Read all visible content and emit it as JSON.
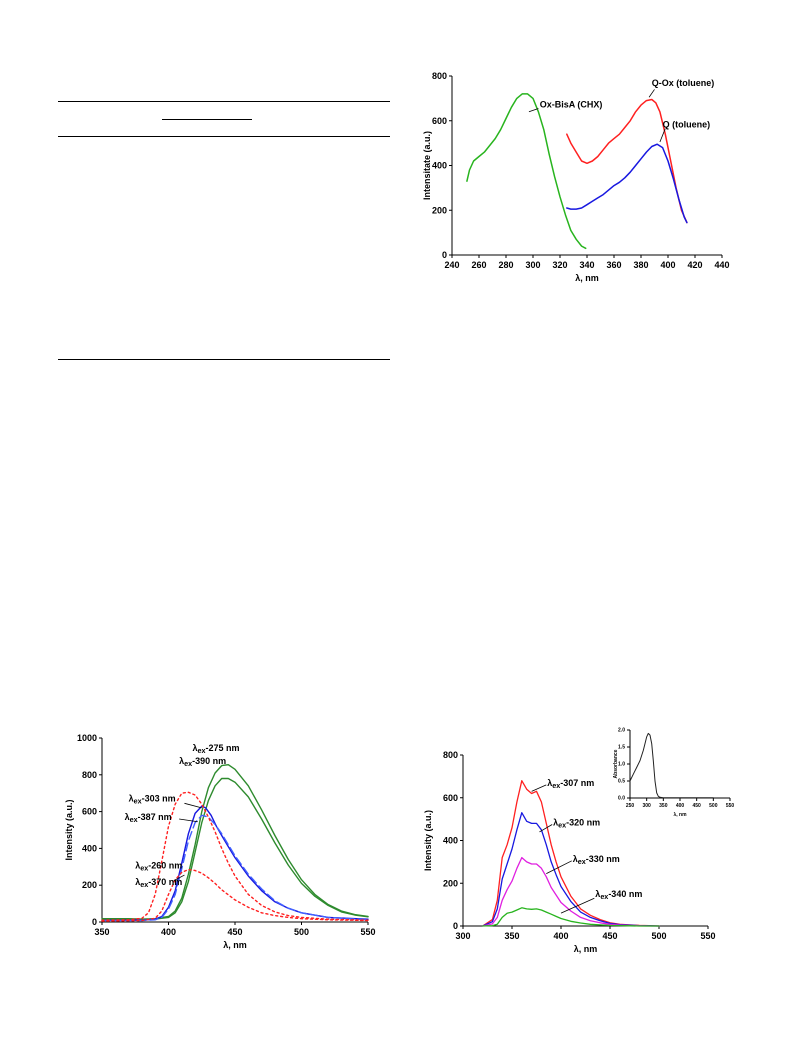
{
  "colors": {
    "green": "#28b41e",
    "red": "#ff2020",
    "blue": "#1818e0",
    "magenta": "#e020e0",
    "dkgreen": "#2e8b2e",
    "dotred": "#ff2020",
    "dashblue": "#4060ff"
  },
  "chart_data": [
    {
      "type": "line",
      "xlabel": "λ, nm",
      "ylabel": "Intensitate (a.u.)",
      "xlim": [
        240,
        440
      ],
      "ylim": [
        0,
        800
      ],
      "xticks": [
        240,
        260,
        280,
        300,
        320,
        340,
        360,
        380,
        400,
        420,
        440
      ],
      "yticks": [
        0,
        200,
        400,
        600,
        800
      ],
      "series": [
        {
          "name": "Ox-BisA (CHX)",
          "color": "#28b41e",
          "x": [
            251,
            253,
            256,
            260,
            264,
            268,
            272,
            276,
            280,
            284,
            288,
            292,
            296,
            300,
            304,
            308,
            312,
            316,
            320,
            324,
            328,
            332,
            336,
            339
          ],
          "y": [
            330,
            380,
            420,
            440,
            460,
            490,
            520,
            560,
            610,
            660,
            700,
            720,
            720,
            700,
            640,
            560,
            450,
            350,
            260,
            180,
            110,
            70,
            40,
            30
          ]
        },
        {
          "name": "Q-Ox (toluene)",
          "color": "#ff2020",
          "x": [
            325,
            328,
            332,
            336,
            340,
            344,
            348,
            352,
            356,
            360,
            364,
            368,
            372,
            376,
            380,
            384,
            388,
            391,
            394,
            398,
            402,
            406,
            410,
            414
          ],
          "y": [
            540,
            500,
            460,
            420,
            410,
            420,
            440,
            470,
            500,
            520,
            540,
            570,
            600,
            640,
            670,
            690,
            695,
            680,
            640,
            540,
            420,
            300,
            200,
            145
          ]
        },
        {
          "name": "Q (toluene)",
          "color": "#1818e0",
          "x": [
            325,
            328,
            332,
            336,
            340,
            344,
            348,
            352,
            356,
            360,
            364,
            368,
            372,
            376,
            380,
            384,
            388,
            392,
            396,
            400,
            404,
            408,
            412,
            414
          ],
          "y": [
            210,
            205,
            205,
            210,
            225,
            240,
            255,
            270,
            290,
            310,
            325,
            345,
            370,
            400,
            430,
            460,
            485,
            495,
            480,
            420,
            340,
            250,
            170,
            145
          ]
        }
      ],
      "annotations": [
        "Ox-BisA (CHX)",
        "Q-Ox (toluene)",
        "Q (toluene)"
      ]
    },
    {
      "type": "line",
      "xlabel": "λ, nm",
      "ylabel": "Intensity (a.u.)",
      "xlim": [
        350,
        550
      ],
      "ylim": [
        0,
        1000
      ],
      "xticks": [
        350,
        400,
        450,
        500,
        550
      ],
      "yticks": [
        0,
        200,
        400,
        600,
        800,
        1000
      ],
      "series": [
        {
          "name": "λex-275 nm",
          "color": "#2e8b2e",
          "dash": "",
          "x": [
            350,
            370,
            380,
            390,
            400,
            405,
            410,
            415,
            420,
            425,
            430,
            435,
            440,
            445,
            450,
            460,
            470,
            480,
            490,
            500,
            510,
            520,
            530,
            540,
            550
          ],
          "y": [
            18,
            18,
            16,
            18,
            30,
            60,
            130,
            260,
            420,
            600,
            730,
            810,
            850,
            855,
            830,
            740,
            610,
            470,
            340,
            230,
            150,
            95,
            60,
            40,
            30
          ]
        },
        {
          "name": "λex-390 nm",
          "color": "#2e8b2e",
          "dash": "",
          "x": [
            350,
            370,
            380,
            390,
            400,
            405,
            410,
            415,
            420,
            425,
            430,
            435,
            440,
            445,
            450,
            460,
            470,
            480,
            490,
            500,
            510,
            520,
            530,
            540,
            550
          ],
          "y": [
            15,
            15,
            14,
            16,
            25,
            50,
            110,
            220,
            380,
            540,
            660,
            740,
            780,
            780,
            760,
            680,
            560,
            430,
            310,
            210,
            140,
            90,
            55,
            38,
            28
          ]
        },
        {
          "name": "λex-303 nm",
          "color": "#1818e0",
          "dash": "",
          "x": [
            350,
            380,
            390,
            395,
            400,
            405,
            410,
            415,
            420,
            425,
            428,
            432,
            436,
            440,
            445,
            450,
            460,
            470,
            480,
            490,
            500,
            520,
            550
          ],
          "y": [
            10,
            10,
            15,
            30,
            80,
            170,
            320,
            480,
            590,
            630,
            620,
            580,
            520,
            470,
            410,
            350,
            250,
            170,
            110,
            75,
            50,
            25,
            15
          ]
        },
        {
          "name": "λex-387 nm",
          "color": "#4060ff",
          "dash": "8,4",
          "x": [
            350,
            380,
            390,
            395,
            400,
            405,
            410,
            415,
            420,
            425,
            430,
            435,
            440,
            445,
            450,
            460,
            470,
            480,
            490,
            500,
            520,
            550
          ],
          "y": [
            8,
            8,
            12,
            25,
            70,
            150,
            290,
            440,
            540,
            580,
            570,
            530,
            480,
            420,
            360,
            260,
            180,
            115,
            75,
            50,
            25,
            12
          ]
        },
        {
          "name": "λex-260 nm",
          "color": "#ff2020",
          "dash": "2,3",
          "x": [
            350,
            370,
            380,
            385,
            390,
            395,
            400,
            405,
            410,
            415,
            420,
            425,
            430,
            435,
            440,
            445,
            450,
            460,
            470,
            480,
            490,
            500,
            520,
            550
          ],
          "y": [
            10,
            12,
            20,
            50,
            150,
            330,
            520,
            640,
            700,
            705,
            690,
            640,
            570,
            490,
            400,
            320,
            250,
            150,
            90,
            55,
            35,
            25,
            15,
            10
          ]
        },
        {
          "name": "λex-370 nm",
          "color": "#ff2020",
          "dash": "2,3",
          "x": [
            350,
            380,
            390,
            395,
            400,
            405,
            410,
            415,
            420,
            425,
            430,
            435,
            440,
            450,
            460,
            470,
            480,
            490,
            500,
            520,
            550
          ],
          "y": [
            5,
            8,
            20,
            60,
            150,
            230,
            270,
            285,
            280,
            265,
            240,
            210,
            175,
            120,
            80,
            50,
            35,
            25,
            18,
            12,
            8
          ]
        }
      ],
      "annotations": [
        "λex-275 nm",
        "λex-390 nm",
        "λex-303 nm",
        "λex-387 nm",
        "λex-260 nm",
        "λex-370 nm"
      ]
    },
    {
      "type": "line",
      "xlabel": "λ, nm",
      "ylabel": "Intensity (a.u.)",
      "xlim": [
        300,
        550
      ],
      "ylim": [
        0,
        800
      ],
      "xticks": [
        300,
        350,
        400,
        450,
        500,
        550
      ],
      "yticks": [
        0,
        200,
        400,
        600,
        800
      ],
      "series": [
        {
          "name": "λex-307 nm",
          "color": "#ff2020",
          "x": [
            320,
            330,
            335,
            340,
            345,
            350,
            355,
            360,
            365,
            370,
            375,
            380,
            385,
            390,
            395,
            400,
            410,
            420,
            430,
            440,
            450,
            460,
            470,
            480,
            490,
            500
          ],
          "y": [
            0,
            30,
            120,
            320,
            380,
            460,
            580,
            680,
            640,
            620,
            630,
            580,
            480,
            380,
            300,
            230,
            140,
            80,
            50,
            30,
            15,
            8,
            5,
            3,
            2,
            0
          ]
        },
        {
          "name": "λex-320 nm",
          "color": "#1818e0",
          "x": [
            320,
            330,
            335,
            340,
            345,
            350,
            355,
            360,
            365,
            370,
            375,
            380,
            385,
            390,
            395,
            400,
            410,
            420,
            430,
            440,
            450,
            460,
            470,
            480,
            490,
            500
          ],
          "y": [
            0,
            20,
            80,
            220,
            290,
            360,
            450,
            530,
            490,
            480,
            480,
            450,
            380,
            300,
            240,
            185,
            115,
            65,
            40,
            25,
            12,
            6,
            4,
            2,
            1,
            0
          ]
        },
        {
          "name": "λex-330 nm",
          "color": "#e020e0",
          "x": [
            320,
            330,
            335,
            340,
            345,
            350,
            355,
            360,
            365,
            370,
            375,
            380,
            385,
            390,
            395,
            400,
            410,
            420,
            430,
            440,
            450,
            460,
            470,
            480,
            490,
            500
          ],
          "y": [
            0,
            10,
            40,
            120,
            170,
            210,
            270,
            320,
            300,
            290,
            290,
            270,
            230,
            180,
            145,
            110,
            70,
            40,
            25,
            15,
            8,
            4,
            2,
            1,
            0,
            0
          ]
        },
        {
          "name": "λex-340 nm",
          "color": "#28b41e",
          "x": [
            320,
            330,
            335,
            340,
            345,
            350,
            355,
            360,
            365,
            370,
            375,
            380,
            385,
            390,
            395,
            400,
            410,
            420,
            430,
            440,
            450,
            460,
            470,
            480,
            490,
            500
          ],
          "y": [
            0,
            2,
            8,
            40,
            60,
            65,
            75,
            85,
            80,
            78,
            80,
            75,
            65,
            55,
            45,
            35,
            22,
            14,
            8,
            5,
            3,
            2,
            1,
            0,
            0,
            0
          ]
        }
      ],
      "annotations": [
        "λex-307 nm",
        "λex-320 nm",
        "λex-330 nm",
        "λex-340 nm"
      ],
      "inset": {
        "type": "line",
        "xlabel": "λ, nm",
        "ylabel": "Absorbance",
        "xlim": [
          250,
          550
        ],
        "ylim": [
          0,
          2.0
        ],
        "xticks": [
          250,
          300,
          350,
          400,
          450,
          500,
          550
        ],
        "yticks": [
          "0.0",
          "0.5",
          "1.0",
          "1.5",
          "2.0"
        ],
        "series": [
          {
            "color": "#222222",
            "x": [
              250,
              260,
              270,
              280,
              290,
              295,
              300,
              305,
              310,
              315,
              320,
              325,
              330,
              335,
              340,
              350,
              400,
              450,
              500
            ],
            "y": [
              0.5,
              0.7,
              0.9,
              1.1,
              1.4,
              1.6,
              1.8,
              1.9,
              1.85,
              1.6,
              1.1,
              0.5,
              0.15,
              0.05,
              0.02,
              0.01,
              0.01,
              0.01,
              0.01
            ]
          }
        ]
      }
    }
  ]
}
